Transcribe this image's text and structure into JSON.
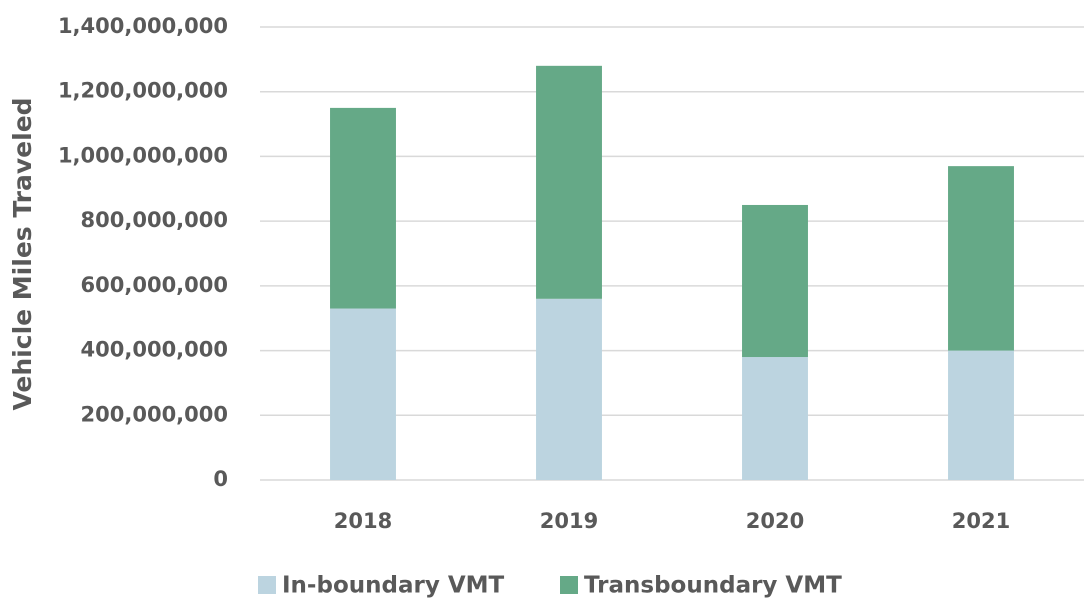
{
  "chart_data": {
    "type": "stacked_bar",
    "y_label": "Vehicle Miles Traveled",
    "categories": [
      "2018",
      "2019",
      "2020",
      "2021"
    ],
    "series": [
      {
        "name": "In-boundary VMT",
        "color": "#bcd4e0",
        "values": [
          530000000,
          560000000,
          380000000,
          400000000
        ]
      },
      {
        "name": "Transboundary VMT",
        "color": "#65a987",
        "values": [
          620000000,
          720000000,
          470000000,
          570000000
        ]
      }
    ],
    "ylim": [
      0,
      1400000000
    ],
    "yticks": [
      0,
      {
        "value": 200000000,
        "label": "200,000,000"
      },
      {
        "value": 400000000,
        "label": "400,000,000"
      },
      {
        "value": 600000000,
        "label": "600,000,000"
      },
      {
        "value": 800000000,
        "label": "800,000,000"
      },
      {
        "value": 1000000000,
        "label": "1,000,000,000"
      },
      {
        "value": 1200000000,
        "label": "1,200,000,000"
      },
      {
        "value": 1400000000,
        "label": "1,400,000,000"
      }
    ],
    "grid": true,
    "legend": "bottom"
  }
}
